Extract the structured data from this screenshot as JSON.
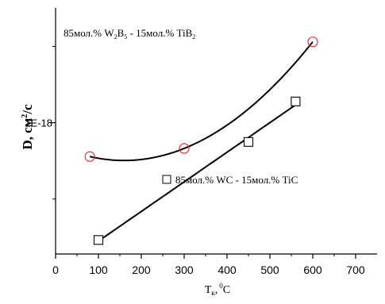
{
  "chart_data": {
    "type": "scatter",
    "xlabel": "T",
    "xlabel_sub": "к",
    "xlabel_sep": ",",
    "xlabel_sup": "0",
    "xlabel_unit": "C",
    "ylabel": "D, см",
    "ylabel_sup": "2",
    "ylabel_unit": "/c",
    "xlim": [
      0,
      750
    ],
    "x_ticks": [
      0,
      100,
      200,
      300,
      400,
      500,
      600,
      700
    ],
    "x_tick_labels": [
      "0",
      "100",
      "200",
      "300",
      "400",
      "500",
      "600",
      "700"
    ],
    "y_scale": "log",
    "ylim": [
      1.9e-20,
      3.2e-17
    ],
    "y_major_ticks": [
      1e-18
    ],
    "y_major_tick_labels": [
      "1E-18"
    ],
    "y_minor_ticks": [
      1e-19,
      1e-17
    ],
    "series": [
      {
        "name": "85мол.% W2B5 - 15мол.% TiB2",
        "name_parts": {
          "p1": "85мол.% W",
          "s1": "2",
          "p2": "B",
          "s2": "5",
          "p3": " - 15мол.% TiB",
          "s3": "2"
        },
        "marker": "circle",
        "color": "#e83030",
        "x": [
          80,
          300,
          600
        ],
        "y": [
          3.6e-19,
          4.6e-19,
          1.15e-17
        ],
        "fit": "quadratic"
      },
      {
        "name": "85мол.% WC - 15мол.% TiC",
        "marker": "square",
        "color": "#000000",
        "x": [
          100,
          450,
          560
        ],
        "y": [
          2.9e-20,
          5.6e-19,
          1.9e-18
        ],
        "fit": "linear"
      }
    ]
  }
}
